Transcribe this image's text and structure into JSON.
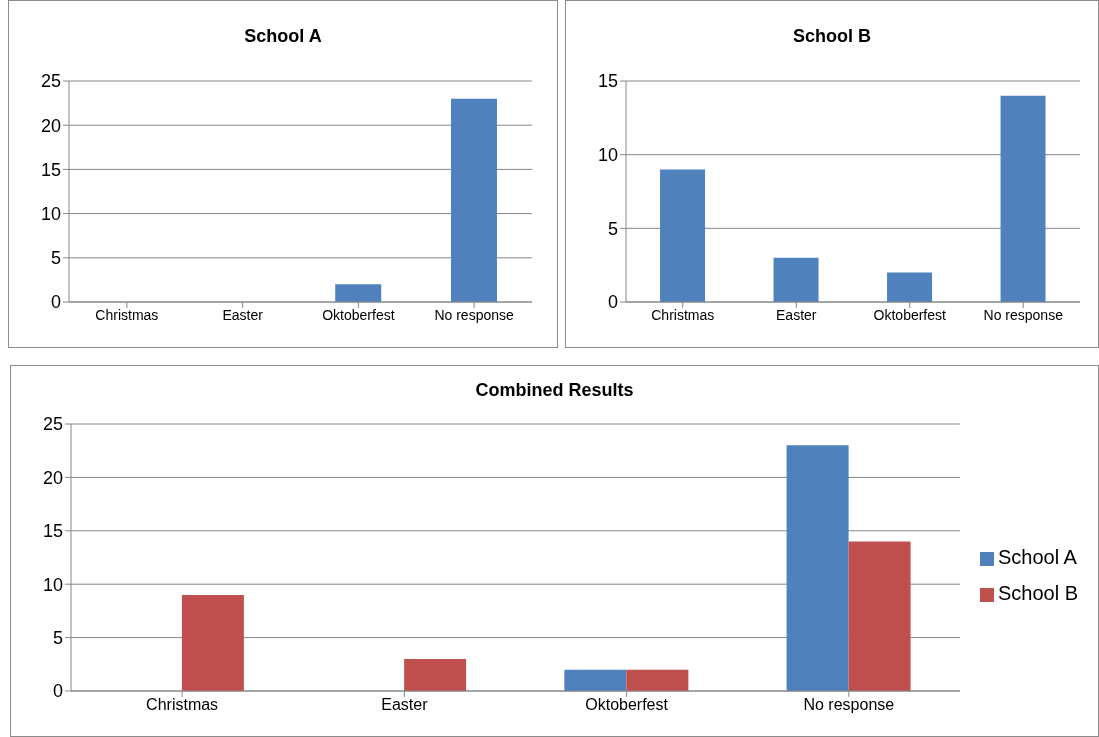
{
  "chart_data": [
    {
      "type": "bar",
      "title": "School A",
      "categories": [
        "Christmas",
        "Easter",
        "Oktoberfest",
        "No response"
      ],
      "values": [
        0,
        0,
        2,
        23
      ],
      "color": "#4f81bd",
      "ylim": [
        0,
        25
      ],
      "yticks": [
        0,
        5,
        10,
        15,
        20,
        25
      ],
      "grid": "y"
    },
    {
      "type": "bar",
      "title": "School B",
      "categories": [
        "Christmas",
        "Easter",
        "Oktoberfest",
        "No response"
      ],
      "values": [
        9,
        3,
        2,
        14
      ],
      "color": "#4f81bd",
      "ylim": [
        0,
        15
      ],
      "yticks": [
        0,
        5,
        10,
        15
      ],
      "grid": "y"
    },
    {
      "type": "bar",
      "title": "Combined Results",
      "categories": [
        "Christmas",
        "Easter",
        "Oktoberfest",
        "No response"
      ],
      "series": [
        {
          "name": "School A",
          "color": "#4f81bd",
          "values": [
            0,
            0,
            2,
            23
          ]
        },
        {
          "name": "School B",
          "color": "#c0504d",
          "values": [
            9,
            3,
            2,
            14
          ]
        }
      ],
      "ylim": [
        0,
        25
      ],
      "yticks": [
        0,
        5,
        10,
        15,
        20,
        25
      ],
      "grid": "y",
      "legend": "right"
    }
  ]
}
